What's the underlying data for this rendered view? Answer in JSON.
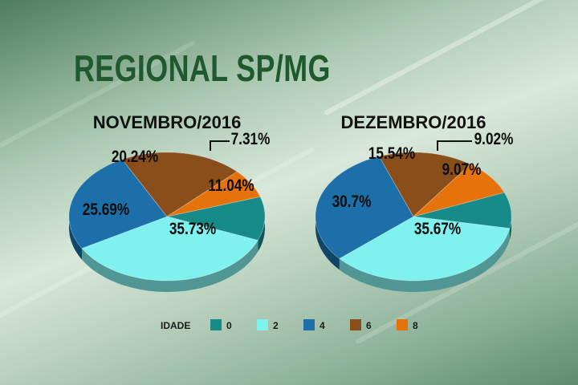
{
  "title": "REGIONAL SP/MG",
  "legend": {
    "label": "IDADE",
    "items": [
      {
        "name": "0",
        "color": "#178a8a"
      },
      {
        "name": "2",
        "color": "#7ff2ef"
      },
      {
        "name": "4",
        "color": "#1c6fa8"
      },
      {
        "name": "6",
        "color": "#8a4e1a"
      },
      {
        "name": "8",
        "color": "#e6720c"
      }
    ]
  },
  "chart_data": [
    {
      "type": "pie",
      "title": "NOVEMBRO/2016",
      "categories": [
        "0",
        "2",
        "4",
        "6",
        "8"
      ],
      "values": [
        11.04,
        35.73,
        25.69,
        20.24,
        7.31
      ],
      "labels": [
        "11.04%",
        "35.73%",
        "25.69%",
        "20.24%",
        "7.31%"
      ]
    },
    {
      "type": "pie",
      "title": "DEZEMBRO/2016",
      "categories": [
        "0",
        "2",
        "4",
        "6",
        "8"
      ],
      "values": [
        9.07,
        35.67,
        30.7,
        15.54,
        9.02
      ],
      "labels": [
        "9.07%",
        "35.67%",
        "30.7%",
        "15.54%",
        "9.02%"
      ]
    }
  ]
}
